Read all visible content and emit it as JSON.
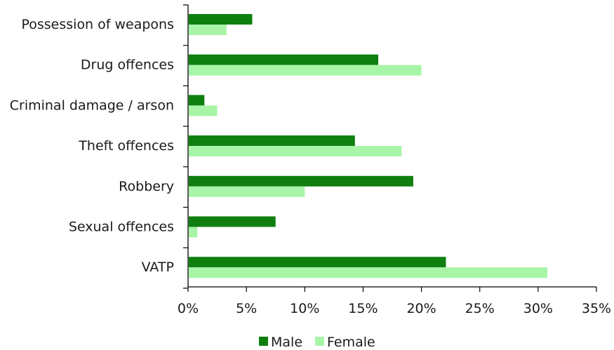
{
  "chart_data": {
    "type": "bar",
    "orientation": "horizontal",
    "categories": [
      "Possession of weapons",
      "Drug offences",
      "Criminal damage / arson",
      "Theft offences",
      "Robbery",
      "Sexual offences",
      "VATP"
    ],
    "series": [
      {
        "name": "Male",
        "color": "#0f7f0f",
        "values": [
          5.5,
          16.3,
          1.4,
          14.3,
          19.3,
          7.5,
          22.1
        ]
      },
      {
        "name": "Female",
        "color": "#a8f5a8",
        "values": [
          3.3,
          20.0,
          2.5,
          18.3,
          10.0,
          0.8,
          30.8
        ]
      }
    ],
    "xlim": [
      0,
      35
    ],
    "xticks": [
      0,
      5,
      10,
      15,
      20,
      25,
      30,
      35
    ],
    "tick_suffix": "%",
    "title": "",
    "xlabel": "",
    "ylabel": "",
    "grid": false,
    "legend_position": "bottom"
  }
}
